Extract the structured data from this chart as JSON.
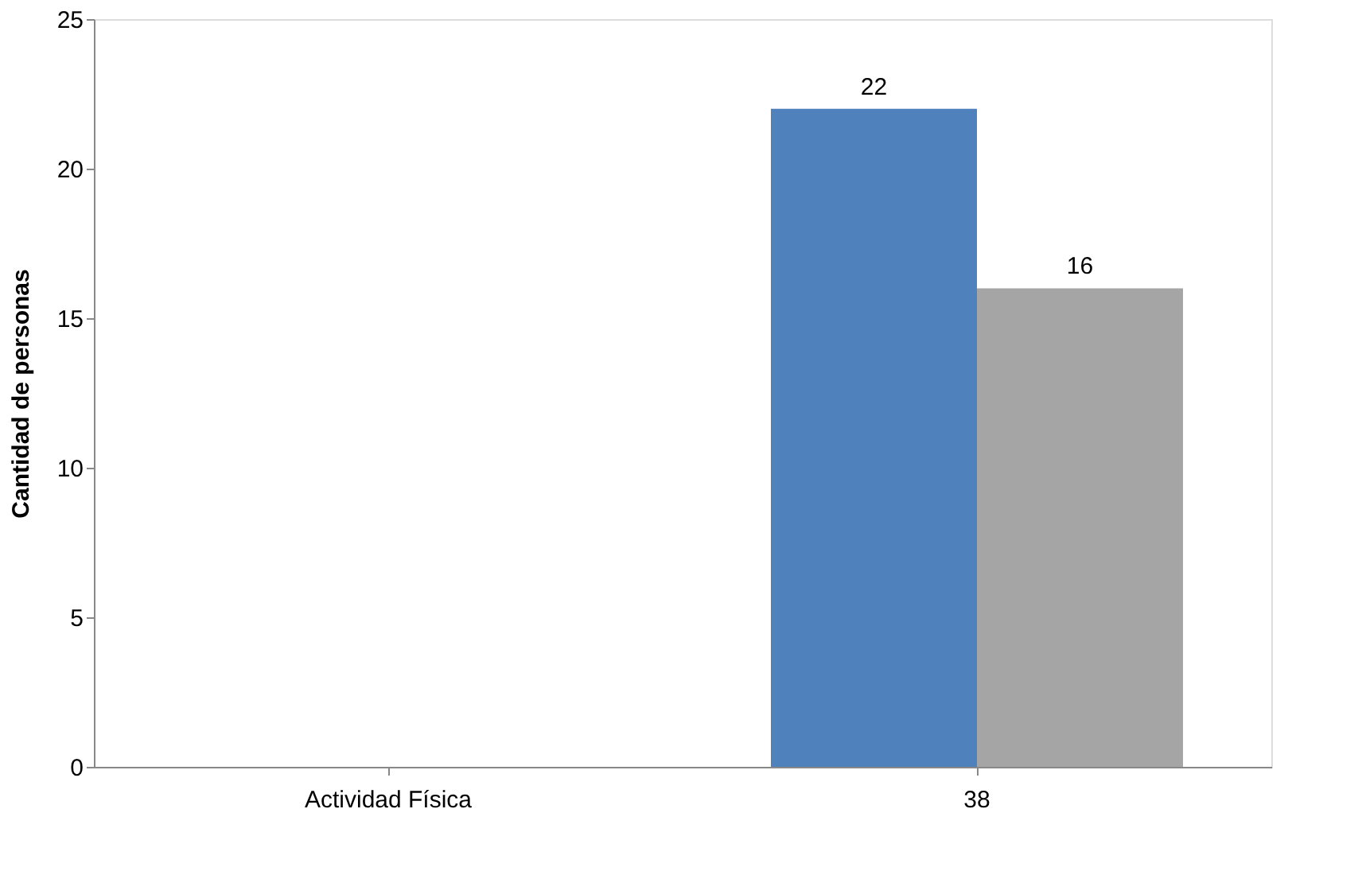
{
  "chart_data": {
    "type": "bar",
    "ylabel": "Cantidad de personas",
    "categories": [
      "Actividad Física",
      "38"
    ],
    "series": [
      {
        "color": "#4f81bd",
        "values": [
          null,
          22
        ]
      },
      {
        "color": "#a5a5a5",
        "values": [
          null,
          16
        ]
      }
    ],
    "ylim": [
      0,
      25
    ],
    "yticks": [
      0,
      5,
      10,
      15,
      20,
      25
    ],
    "grid": false,
    "legend": false,
    "data_labels": true
  }
}
